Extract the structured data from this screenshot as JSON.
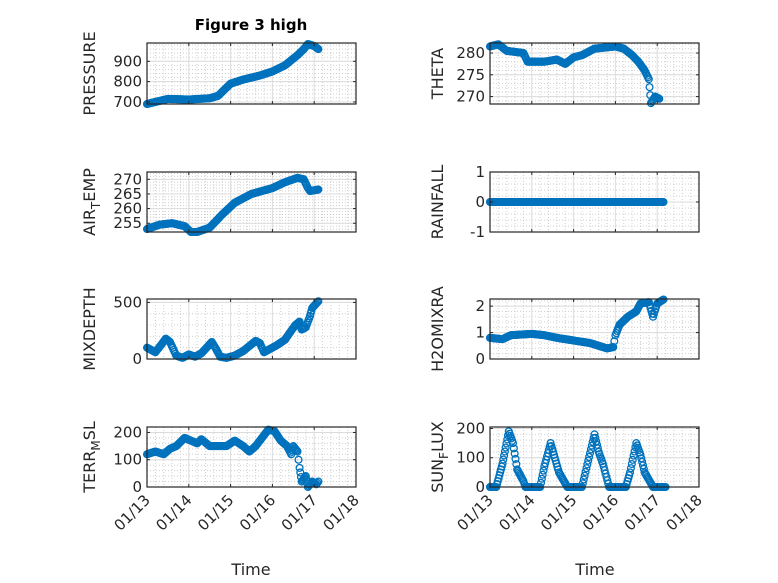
{
  "chart_data": {
    "type": "scatter",
    "title": "Figure 3 high",
    "xlabel": "Time",
    "x_units": "days since 01/13",
    "xlim": [
      0,
      5
    ],
    "x_tick_values": [
      0,
      1,
      2,
      3,
      4,
      5
    ],
    "x_tick_labels": [
      "01/13",
      "01/14",
      "01/15",
      "01/16",
      "01/17",
      "01/18"
    ],
    "marker_color": "#0072BD",
    "grid": "major and minor",
    "subplots": [
      {
        "id": "pressure",
        "ylabel": {
          "main": "PRESSURE",
          "sub": "",
          "rest": ""
        },
        "ylim": [
          690,
          990
        ],
        "yticks": [
          700,
          800,
          900
        ],
        "points": [
          [
            0,
            690
          ],
          [
            0.2,
            700
          ],
          [
            0.5,
            715
          ],
          [
            1,
            712
          ],
          [
            1.5,
            718
          ],
          [
            1.7,
            730
          ],
          [
            2,
            790
          ],
          [
            2.3,
            810
          ],
          [
            2.7,
            830
          ],
          [
            3,
            850
          ],
          [
            3.3,
            880
          ],
          [
            3.6,
            930
          ],
          [
            3.75,
            960
          ],
          [
            3.85,
            985
          ],
          [
            4,
            975
          ],
          [
            4.1,
            960
          ]
        ]
      },
      {
        "id": "theta",
        "ylabel": {
          "main": "THETA",
          "sub": "",
          "rest": ""
        },
        "ylim": [
          268.3,
          282.3
        ],
        "yticks": [
          270,
          275,
          280
        ],
        "points": [
          [
            0,
            281.5
          ],
          [
            0.2,
            282
          ],
          [
            0.4,
            280.5
          ],
          [
            0.8,
            280
          ],
          [
            0.9,
            278
          ],
          [
            1.3,
            278
          ],
          [
            1.6,
            278.5
          ],
          [
            1.8,
            277.5
          ],
          [
            2,
            279
          ],
          [
            2.2,
            279.5
          ],
          [
            2.5,
            281
          ],
          [
            3,
            281.5
          ],
          [
            3.2,
            281
          ],
          [
            3.4,
            279.5
          ],
          [
            3.55,
            278
          ],
          [
            3.7,
            276
          ],
          [
            3.8,
            274
          ],
          [
            3.85,
            268.5
          ],
          [
            3.95,
            270
          ],
          [
            4.05,
            269.5
          ]
        ]
      },
      {
        "id": "air-temp",
        "ylabel": {
          "main": "AIR",
          "sub": "T",
          "rest": "EMP"
        },
        "ylim": [
          252,
          272.5
        ],
        "yticks": [
          255,
          260,
          265,
          270
        ],
        "points": [
          [
            0,
            253
          ],
          [
            0.3,
            254.5
          ],
          [
            0.6,
            255
          ],
          [
            0.9,
            254
          ],
          [
            1.05,
            252
          ],
          [
            1.2,
            252
          ],
          [
            1.5,
            253.5
          ],
          [
            1.8,
            258
          ],
          [
            2.1,
            262
          ],
          [
            2.5,
            265
          ],
          [
            3,
            267
          ],
          [
            3.3,
            269
          ],
          [
            3.5,
            270
          ],
          [
            3.6,
            270.5
          ],
          [
            3.75,
            270
          ],
          [
            3.85,
            267
          ],
          [
            3.9,
            266
          ],
          [
            4.1,
            266.5
          ]
        ]
      },
      {
        "id": "rainfall",
        "ylabel": {
          "main": "RAINFALL",
          "sub": "",
          "rest": ""
        },
        "ylim": [
          -1,
          1
        ],
        "yticks": [
          -1,
          0,
          1
        ],
        "points": [
          [
            0,
            0
          ],
          [
            4.15,
            0
          ]
        ]
      },
      {
        "id": "mixdepth",
        "ylabel": {
          "main": "MIXDEPTH",
          "sub": "",
          "rest": ""
        },
        "ylim": [
          0,
          530
        ],
        "yticks": [
          0,
          500
        ],
        "points": [
          [
            0,
            100
          ],
          [
            0.1,
            80
          ],
          [
            0.2,
            60
          ],
          [
            0.35,
            130
          ],
          [
            0.45,
            180
          ],
          [
            0.55,
            150
          ],
          [
            0.7,
            30
          ],
          [
            0.85,
            10
          ],
          [
            1,
            40
          ],
          [
            1.15,
            20
          ],
          [
            1.3,
            50
          ],
          [
            1.5,
            130
          ],
          [
            1.55,
            150
          ],
          [
            1.65,
            90
          ],
          [
            1.75,
            20
          ],
          [
            1.9,
            10
          ],
          [
            2.1,
            30
          ],
          [
            2.3,
            70
          ],
          [
            2.5,
            130
          ],
          [
            2.6,
            160
          ],
          [
            2.7,
            140
          ],
          [
            2.8,
            60
          ],
          [
            2.9,
            80
          ],
          [
            3.1,
            120
          ],
          [
            3.3,
            170
          ],
          [
            3.45,
            250
          ],
          [
            3.55,
            300
          ],
          [
            3.65,
            330
          ],
          [
            3.7,
            260
          ],
          [
            3.8,
            280
          ],
          [
            3.9,
            380
          ],
          [
            3.95,
            450
          ],
          [
            4.05,
            490
          ],
          [
            4.1,
            510
          ]
        ]
      },
      {
        "id": "h2omixra",
        "ylabel": {
          "main": "H2OMIXRA",
          "sub": "",
          "rest": ""
        },
        "ylim": [
          0,
          2.27
        ],
        "yticks": [
          0,
          1,
          2
        ],
        "points": [
          [
            0,
            0.8
          ],
          [
            0.3,
            0.75
          ],
          [
            0.5,
            0.9
          ],
          [
            1,
            0.95
          ],
          [
            1.3,
            0.9
          ],
          [
            1.6,
            0.8
          ],
          [
            2,
            0.7
          ],
          [
            2.4,
            0.6
          ],
          [
            2.6,
            0.5
          ],
          [
            2.8,
            0.4
          ],
          [
            2.95,
            0.45
          ],
          [
            3,
            0.9
          ],
          [
            3.1,
            1.3
          ],
          [
            3.3,
            1.6
          ],
          [
            3.5,
            1.8
          ],
          [
            3.6,
            2.1
          ],
          [
            3.8,
            2.15
          ],
          [
            3.9,
            1.6
          ],
          [
            4,
            2.1
          ],
          [
            4.15,
            2.25
          ]
        ]
      },
      {
        "id": "terr-msl",
        "ylabel": {
          "main": "TERR",
          "sub": "M",
          "rest": "SL"
        },
        "ylim": [
          0,
          220
        ],
        "yticks": [
          0,
          100,
          200
        ],
        "points": [
          [
            0,
            120
          ],
          [
            0.2,
            130
          ],
          [
            0.4,
            120
          ],
          [
            0.55,
            140
          ],
          [
            0.7,
            150
          ],
          [
            0.9,
            180
          ],
          [
            1.05,
            170
          ],
          [
            1.2,
            160
          ],
          [
            1.3,
            175
          ],
          [
            1.5,
            150
          ],
          [
            1.9,
            150
          ],
          [
            2.1,
            170
          ],
          [
            2.3,
            150
          ],
          [
            2.45,
            130
          ],
          [
            2.6,
            150
          ],
          [
            2.75,
            180
          ],
          [
            2.9,
            210
          ],
          [
            3.05,
            205
          ],
          [
            3.2,
            170
          ],
          [
            3.35,
            150
          ],
          [
            3.45,
            120
          ],
          [
            3.5,
            150
          ],
          [
            3.6,
            130
          ],
          [
            3.65,
            70
          ],
          [
            3.7,
            20
          ],
          [
            3.8,
            40
          ],
          [
            3.85,
            0
          ],
          [
            3.95,
            20
          ],
          [
            4.05,
            10
          ],
          [
            4.1,
            20
          ]
        ]
      },
      {
        "id": "sun-flux",
        "ylabel": {
          "main": "SUN",
          "sub": "F",
          "rest": "LUX"
        },
        "ylim": [
          0,
          205
        ],
        "yticks": [
          0,
          100,
          200
        ],
        "points": [
          [
            0,
            0
          ],
          [
            0.15,
            0
          ],
          [
            0.3,
            80
          ],
          [
            0.45,
            190
          ],
          [
            0.55,
            150
          ],
          [
            0.65,
            60
          ],
          [
            0.8,
            20
          ],
          [
            0.85,
            0
          ],
          [
            1.2,
            0
          ],
          [
            1.3,
            70
          ],
          [
            1.45,
            150
          ],
          [
            1.55,
            100
          ],
          [
            1.65,
            50
          ],
          [
            1.85,
            0
          ],
          [
            2.2,
            0
          ],
          [
            2.35,
            90
          ],
          [
            2.5,
            180
          ],
          [
            2.6,
            120
          ],
          [
            2.7,
            80
          ],
          [
            2.85,
            0
          ],
          [
            3.25,
            0
          ],
          [
            3.35,
            50
          ],
          [
            3.5,
            150
          ],
          [
            3.6,
            110
          ],
          [
            3.7,
            50
          ],
          [
            3.9,
            0
          ],
          [
            4.2,
            0
          ]
        ]
      }
    ]
  }
}
